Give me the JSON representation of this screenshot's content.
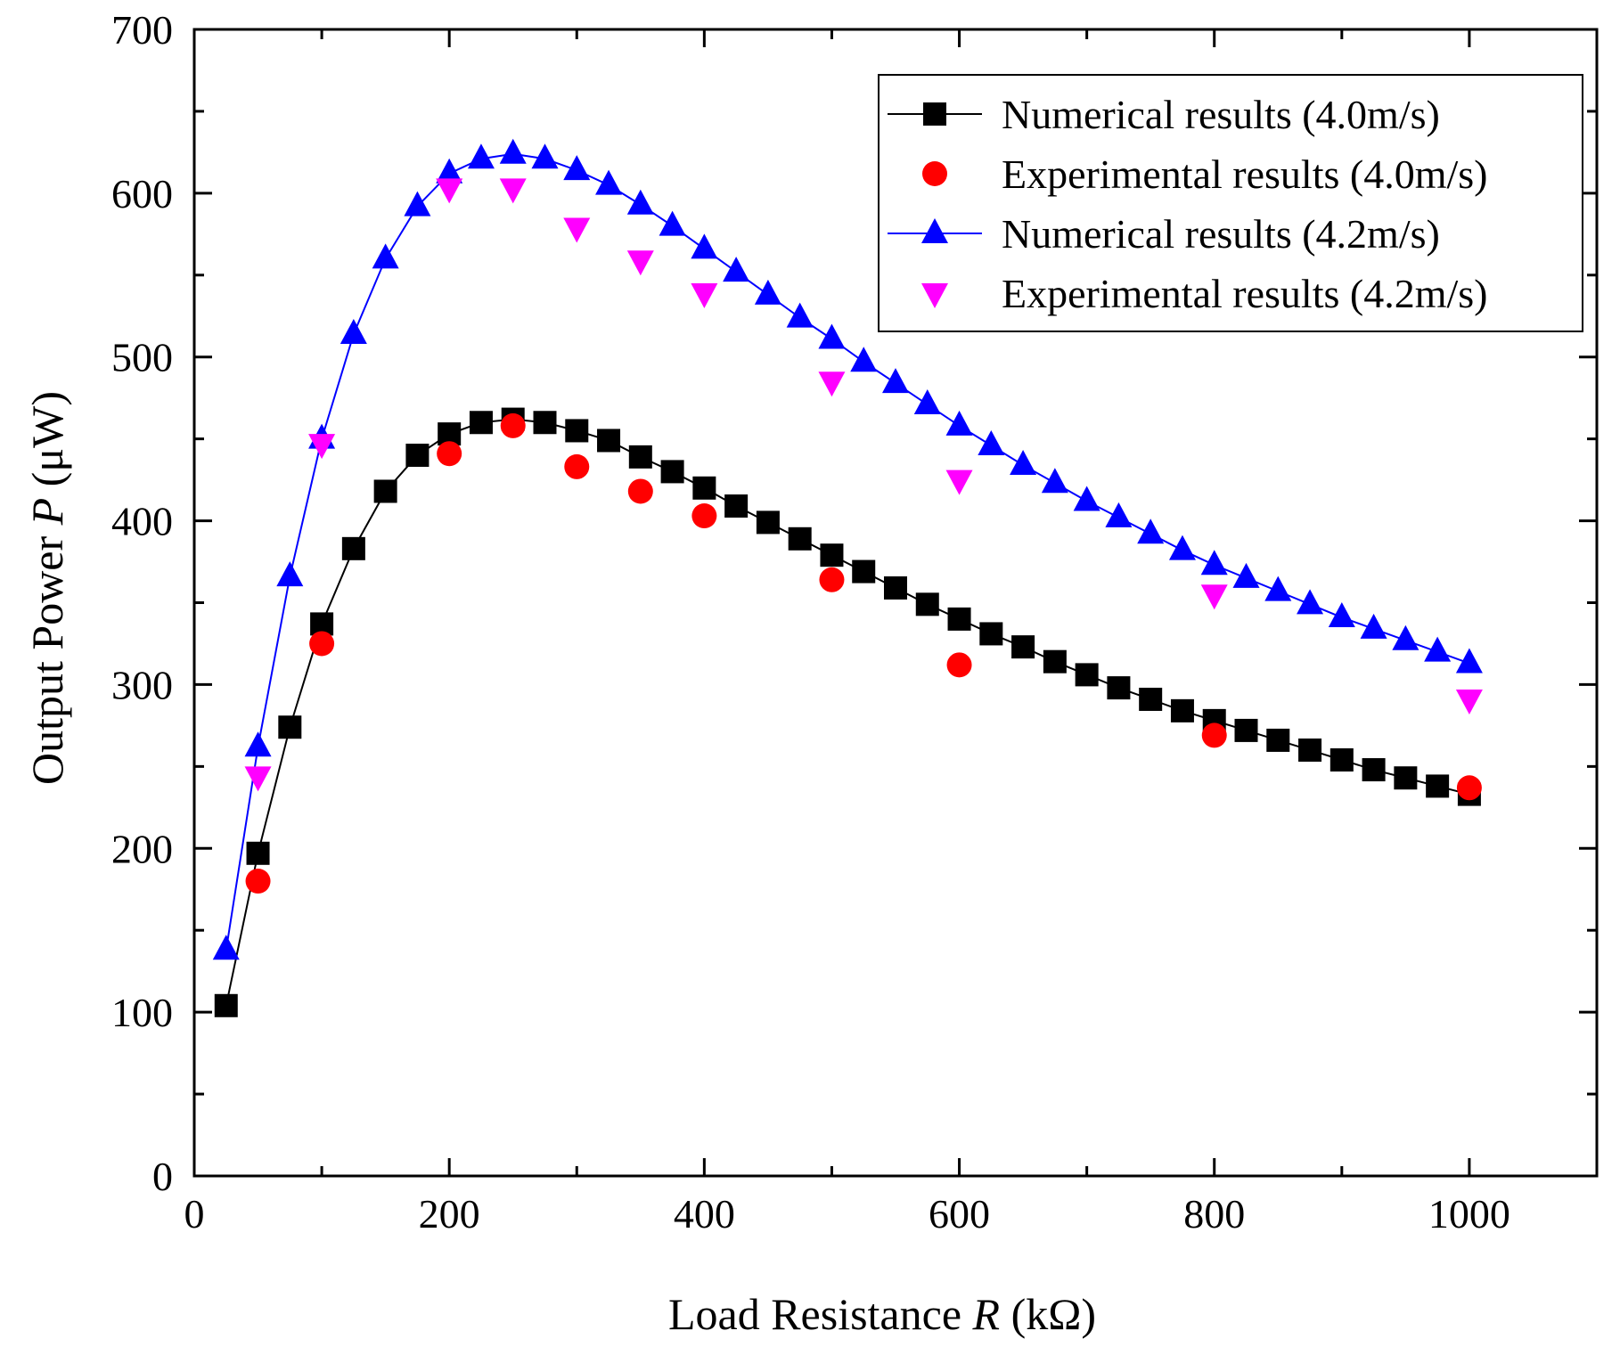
{
  "chart_data": {
    "type": "line",
    "xlabel": {
      "prefix": "Load Resistance ",
      "var": "R",
      "suffix": " (kΩ)"
    },
    "ylabel": {
      "prefix": "Output Power ",
      "var": "P",
      "suffix": " (μW)"
    },
    "xlim": [
      0,
      1100
    ],
    "ylim": [
      0,
      700
    ],
    "xticks": [
      0,
      200,
      400,
      600,
      800,
      1000
    ],
    "yticks": [
      0,
      100,
      200,
      300,
      400,
      500,
      600,
      700
    ],
    "legend_position": "top-right",
    "grid": false,
    "series": [
      {
        "name": "Numerical results (4.0m/s)",
        "marker": "square",
        "color": "#000000",
        "line": true,
        "x": [
          25,
          50,
          75,
          100,
          125,
          150,
          175,
          200,
          225,
          250,
          275,
          300,
          325,
          350,
          375,
          400,
          425,
          450,
          475,
          500,
          525,
          550,
          575,
          600,
          625,
          650,
          675,
          700,
          725,
          750,
          775,
          800,
          825,
          850,
          875,
          900,
          925,
          950,
          975,
          1000
        ],
        "y": [
          104,
          197,
          274,
          337,
          383,
          418,
          440,
          453,
          460,
          462,
          460,
          455,
          449,
          439,
          430,
          420,
          409,
          399,
          389,
          379,
          369,
          359,
          349,
          340,
          331,
          323,
          314,
          306,
          298,
          291,
          284,
          278,
          272,
          266,
          260,
          254,
          248,
          243,
          238,
          233
        ]
      },
      {
        "name": "Experimental results (4.0m/s)",
        "marker": "circle",
        "color": "#ff0000",
        "line": false,
        "x": [
          50,
          100,
          200,
          250,
          300,
          350,
          400,
          500,
          600,
          800,
          1000
        ],
        "y": [
          180,
          325,
          441,
          458,
          433,
          418,
          403,
          364,
          312,
          269,
          237
        ]
      },
      {
        "name": "Numerical results (4.2m/s)",
        "marker": "triangle-up",
        "color": "#0000ff",
        "line": true,
        "x": [
          25,
          50,
          75,
          100,
          125,
          150,
          175,
          200,
          225,
          250,
          275,
          300,
          325,
          350,
          375,
          400,
          425,
          450,
          475,
          500,
          525,
          550,
          575,
          600,
          625,
          650,
          675,
          700,
          725,
          750,
          775,
          800,
          825,
          850,
          875,
          900,
          925,
          950,
          975,
          1000
        ],
        "y": [
          138,
          262,
          366,
          450,
          514,
          560,
          592,
          612,
          621,
          624,
          621,
          614,
          605,
          593,
          580,
          566,
          552,
          538,
          524,
          511,
          497,
          484,
          471,
          458,
          446,
          434,
          423,
          412,
          402,
          392,
          382,
          373,
          365,
          357,
          349,
          341,
          334,
          327,
          320,
          313
        ]
      },
      {
        "name": "Experimental results (4.2m/s)",
        "marker": "triangle-down",
        "color": "#ff00ff",
        "line": false,
        "x": [
          50,
          100,
          200,
          250,
          300,
          350,
          400,
          500,
          600,
          800,
          1000
        ],
        "y": [
          244,
          447,
          603,
          603,
          579,
          559,
          539,
          485,
          425,
          355,
          291
        ]
      }
    ]
  }
}
